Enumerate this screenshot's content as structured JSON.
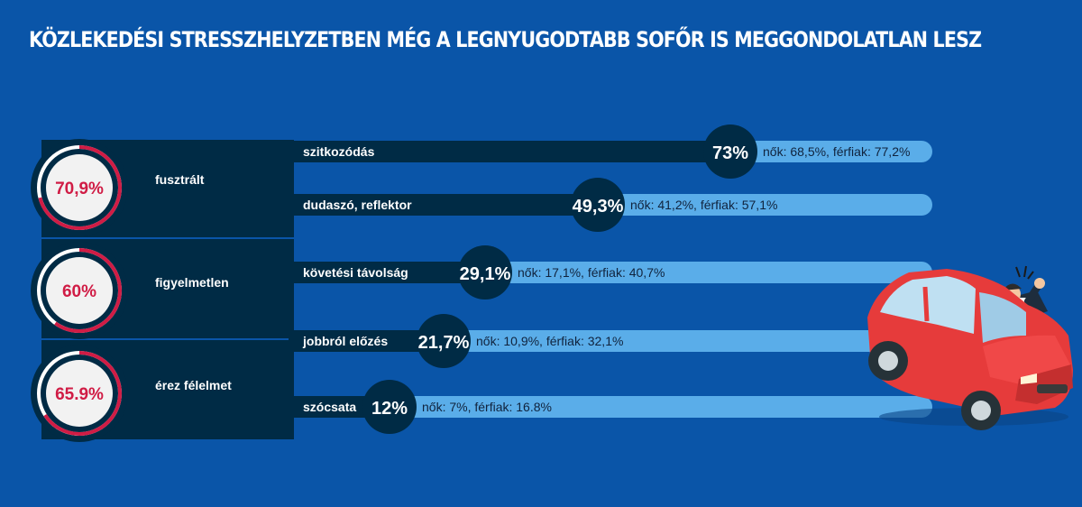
{
  "title": "KÖZLEKEDÉSI STRESSZHELYZETBEN MÉG A LEGNYUGODTABB SOFŐR IS MEGGONDOLATLAN LESZ",
  "colors": {
    "background": "#0a55a8",
    "panel": "#002b45",
    "bar_track": "#5aade9",
    "ring_accent": "#d01c45",
    "ring_track": "#ffffff",
    "circle_fill": "#f2f2f2",
    "car": "#e63b3b"
  },
  "chart_data": {
    "type": "bar",
    "groups": [
      {
        "label": "fusztrált",
        "value": "70,9%",
        "percent": 70.9,
        "items": [
          {
            "label": "szitkozódás",
            "value": 73,
            "value_label": "73%",
            "detail": "nők: 68,5%, férfiak: 77,2%"
          },
          {
            "label": "dudaszó, reflektor",
            "value": 49.3,
            "value_label": "49,3%",
            "detail": "nők: 41,2%, férfiak: 57,1%"
          }
        ]
      },
      {
        "label": "figyelmetlen",
        "value": "60%",
        "percent": 60,
        "items": [
          {
            "label": "követési távolság",
            "value": 29.1,
            "value_label": "29,1%",
            "detail": "nők: 17,1%, férfiak: 40,7%"
          },
          {
            "label": "jobbról előzés",
            "value": 21.7,
            "value_label": "21,7%",
            "detail": "nők: 10,9%, férfiak: 32,1%"
          }
        ]
      },
      {
        "label": "érez félelmet",
        "value": "65.9%",
        "percent": 65.9,
        "items": [
          {
            "label": "szócsata",
            "value": 12,
            "value_label": "12%",
            "detail": "nők: 7%, férfiak: 16.8%"
          }
        ]
      }
    ],
    "xlim": [
      0,
      100
    ]
  },
  "car_icon": "angry-driver-car-icon"
}
